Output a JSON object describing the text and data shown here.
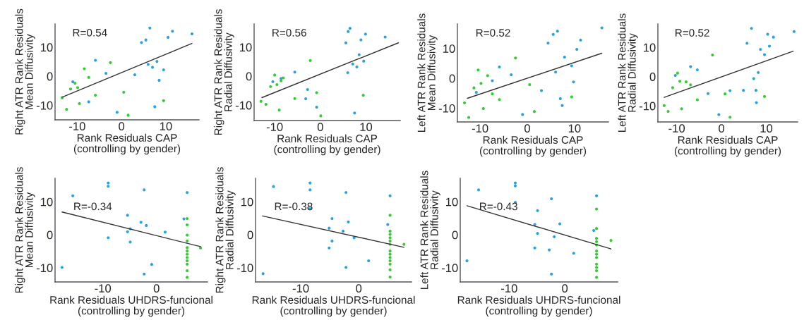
{
  "chart_data": [
    {
      "type": "scatter",
      "xlabel": "Rank Residuals CAP\n(controlling by gender)",
      "ylabel": "Right ATR Rank Residuals\nMean Diffusivity",
      "annotations": [
        "R=0.54"
      ],
      "xlim": [
        -15,
        17.5
      ],
      "ylim": [
        -15,
        18
      ],
      "xticks": [
        -10,
        0,
        10
      ],
      "yticks": [
        -10,
        0,
        10
      ],
      "grid": false,
      "legend": false,
      "series": [
        {
          "color": "#29a3de",
          "marker": "circle",
          "x": [
            6.4,
            11.5,
            10.5,
            15.9,
            4.5,
            5.5,
            -5.9,
            -3.5,
            3.0,
            6.0,
            8.0,
            7.0,
            9.5,
            8.5,
            -11.0,
            -7.4,
            -1.0,
            7.5
          ],
          "values": [
            16.6,
            15.5,
            13.4,
            14.6,
            11.6,
            12.5,
            5.5,
            1.0,
            0.5,
            4.1,
            5.1,
            3.1,
            2.2,
            -1.4,
            -1.9,
            -8.8,
            -12.4,
            -10.5
          ]
        },
        {
          "color": "#33cc33",
          "marker": "circle",
          "x": [
            -10.5,
            -9.9,
            -11.5,
            -8.4,
            -7.4,
            -2.5,
            -13.4,
            -12.4,
            -9.5,
            -5.9,
            0.5,
            1.5,
            9.5
          ],
          "values": [
            -2.4,
            -3.9,
            -4.4,
            2.6,
            -0.4,
            4.7,
            -7.4,
            -11.4,
            -9.4,
            -6.5,
            -5.5,
            -13.4,
            -8.4
          ]
        },
        {
          "type": "line",
          "color": "#333333",
          "marker": "none",
          "line_style": "solid",
          "x": [
            -13.4,
            15.9
          ],
          "values": [
            -7.2,
            11.3
          ]
        }
      ]
    },
    {
      "type": "scatter",
      "xlabel": "Rank Residuals CAP\n(controlling by gender)",
      "ylabel": "Right ATR Rank Residuals\nRadial Diffusivity",
      "annotations": [
        "R=0.56"
      ],
      "xlim": [
        -14.5,
        17.5
      ],
      "ylim": [
        -15.3,
        18
      ],
      "xticks": [
        -10,
        0,
        10
      ],
      "yticks": [
        -10,
        0,
        10
      ],
      "grid": false,
      "legend": false,
      "series": [
        {
          "color": "#29a3de",
          "marker": "circle",
          "x": [
            6.1,
            6.5,
            5.6,
            9.9,
            8.9,
            14.2,
            8.5,
            9.5,
            8.0,
            7.1,
            6.0,
            -5.6,
            -10.4,
            -8.6,
            -2.8,
            -3.2,
            -0.8,
            7.5
          ],
          "values": [
            15.4,
            16.5,
            11.5,
            14.5,
            12.5,
            13.5,
            7.4,
            5.2,
            3.2,
            4.2,
            1.2,
            1.4,
            -1.9,
            -0.8,
            -4.6,
            -7.8,
            -10.7,
            -12.7
          ]
        },
        {
          "color": "#33cc33",
          "marker": "circle",
          "x": [
            -10.0,
            -10.9,
            -9.5,
            -8.1,
            -8.6,
            -2.2,
            -13.0,
            -11.9,
            -9.0,
            -5.6,
            -0.8,
            0.1,
            9.4
          ],
          "values": [
            0.4,
            -3.6,
            -2.9,
            -0.6,
            -1.6,
            5.4,
            -8.7,
            -9.7,
            -11.7,
            -7.7,
            -5.7,
            -13.7,
            -6.6
          ]
        },
        {
          "type": "line",
          "color": "#333333",
          "marker": "none",
          "line_style": "solid",
          "x": [
            -12.8,
            17.1
          ],
          "values": [
            -7.4,
            11.5
          ]
        }
      ]
    },
    {
      "type": "scatter",
      "xlabel": "Rank Residuals CAP\n(controlling by gender)",
      "ylabel": "Left ATR Rank Residuals\nMean Diffusivity",
      "annotations": [
        "R=0.52"
      ],
      "xlim": [
        -14.8,
        17.2
      ],
      "ylim": [
        -14.6,
        18.2
      ],
      "xticks": [
        -10,
        0,
        10
      ],
      "yticks": [
        -10,
        0,
        10
      ],
      "grid": false,
      "legend": false,
      "series": [
        {
          "color": "#29a3de",
          "marker": "circle",
          "x": [
            15.8,
            5.5,
            6.4,
            4.4,
            11.3,
            10.5,
            7.9,
            9.4,
            6.0,
            9.8,
            -5.9,
            -3.4,
            -7.4,
            -10.8,
            3.0,
            7.0,
            7.4,
            -1.0
          ],
          "values": [
            16.9,
            14.7,
            15.8,
            11.8,
            12.8,
            9.7,
            7.1,
            4.2,
            2.1,
            -1.2,
            3.8,
            1.2,
            -0.8,
            -4.7,
            -4.1,
            -6.8,
            -9.1,
            -12.1
          ]
        },
        {
          "color": "#33cc33",
          "marker": "circle",
          "x": [
            -10.4,
            -8.4,
            -9.8,
            -11.3,
            -7.4,
            -5.9,
            -9.3,
            -13.3,
            -12.4,
            -2.5,
            0.5,
            1.5,
            9.4
          ],
          "values": [
            2.8,
            0.9,
            -1.7,
            -3.2,
            -5.2,
            -7.1,
            -10.1,
            -8.2,
            -13.1,
            6.8,
            -2.1,
            -11.1,
            -6.2
          ]
        },
        {
          "type": "line",
          "color": "#333333",
          "marker": "none",
          "line_style": "solid",
          "x": [
            -12.7,
            15.8
          ],
          "values": [
            -6.7,
            8.4
          ]
        }
      ]
    },
    {
      "type": "scatter",
      "xlabel": "Rank Residuals CAP\n(controlling by gender)",
      "ylabel": "Left ATR Rank Residuals\nRadial Diffusivity",
      "annotations": [
        "R=0.52"
      ],
      "xlim": [
        -14.2,
        17
      ],
      "ylim": [
        -15.5,
        18
      ],
      "xticks": [
        -10,
        0,
        10
      ],
      "yticks": [
        -10,
        0,
        10
      ],
      "grid": false,
      "legend": false,
      "series": [
        {
          "color": "#29a3de",
          "marker": "circle",
          "x": [
            16.2,
            6.7,
            10.3,
            11.6,
            5.7,
            8.7,
            10.7,
            9.6,
            8.2,
            7.2,
            7.7,
            4.9,
            1.9,
            -3.0,
            -6.9,
            -5.4,
            -10.3,
            7.8,
            -0.6
          ],
          "values": [
            15.4,
            16.5,
            14.5,
            13.5,
            11.4,
            9.3,
            10.4,
            7.5,
            1.4,
            -0.7,
            -4.7,
            -4.7,
            -4.8,
            -5.8,
            3.4,
            2.3,
            0.4,
            -8.9,
            -13.0
          ]
        },
        {
          "color": "#33cc33",
          "marker": "circle",
          "x": [
            -9.8,
            -10.9,
            -9.3,
            -7.9,
            -6.9,
            -2.0,
            -12.8,
            -11.9,
            -8.9,
            -5.4,
            0.8,
            1.9,
            9.6
          ],
          "values": [
            1.2,
            -3.8,
            -1.6,
            -1.8,
            -2.8,
            7.4,
            -9.9,
            -11.9,
            -11.0,
            -7.9,
            -5.9,
            -13.9,
            -6.8
          ]
        },
        {
          "type": "line",
          "color": "#333333",
          "marker": "none",
          "line_style": "solid",
          "x": [
            -12.8,
            16.0
          ],
          "values": [
            -7.1,
            8.7
          ]
        }
      ]
    },
    {
      "type": "scatter",
      "xlabel": "Rank Residuals UHDRS-funcional\n(controlling by gender)",
      "ylabel": "Right ATR Rank Residuals\nMean Diffusivity",
      "annotations": [
        "R=-0.34"
      ],
      "xlim": [
        -18.9,
        9.5
      ],
      "ylim": [
        -14.3,
        17.1
      ],
      "xticks": [
        -10,
        0
      ],
      "yticks": [
        -10,
        0,
        10
      ],
      "grid": false,
      "legend": false,
      "series": [
        {
          "color": "#29a3de",
          "marker": "circle",
          "x": [
            -9.0,
            -9.0,
            -15.6,
            -2.3,
            5.7,
            -5.4,
            -2.9,
            -1.9,
            5.1,
            -5.4,
            -4.9,
            1.6,
            -9.0,
            -4.9,
            -0.9,
            -2.3,
            -17.6
          ],
          "values": [
            15.7,
            14.7,
            11.8,
            13.6,
            12.8,
            5.9,
            3.8,
            2.8,
            4.8,
            0.9,
            1.8,
            0.8,
            -0.9,
            -2.2,
            -9.0,
            -11.9,
            -9.9
          ]
        },
        {
          "color": "#33cc33",
          "marker": "circle",
          "x": [
            5.7,
            5.7,
            5.7,
            5.7,
            5.7,
            5.7,
            5.7,
            5.7,
            5.7,
            5.7,
            5.7,
            5.7,
            8.2
          ],
          "values": [
            4.9,
            3.0,
            -0.1,
            -1.9,
            -3.9,
            -4.9,
            -5.9,
            -6.9,
            -7.9,
            -8.9,
            -10.9,
            -12.9,
            -4.0
          ]
        },
        {
          "type": "line",
          "color": "#333333",
          "marker": "none",
          "line_style": "solid",
          "x": [
            -17.6,
            8.2
          ],
          "values": [
            6.9,
            -3.6
          ]
        }
      ]
    },
    {
      "type": "scatter",
      "xlabel": "Rank Residuals UHDRS-funcional\n(controlling by gender)",
      "ylabel": "Right ATR Rank Residuals\nRadial Diffusivity",
      "annotations": [
        "R=-0.38"
      ],
      "xlim": [
        -17.8,
        9.1
      ],
      "ylim": [
        -14.3,
        17.1
      ],
      "xticks": [
        -10,
        0
      ],
      "yticks": [
        -10,
        0,
        10
      ],
      "grid": false,
      "legend": false,
      "series": [
        {
          "color": "#29a3de",
          "marker": "circle",
          "x": [
            -14.7,
            -16.5,
            -8.4,
            -8.4,
            -8.4,
            -2.2,
            5.4,
            -4.6,
            -1.8,
            -5.1,
            -2.7,
            -0.8,
            -4.6,
            -5.1,
            1.7,
            -2.2,
            5.0
          ],
          "values": [
            14.6,
            -11.8,
            15.7,
            13.6,
            7.9,
            12.8,
            11.8,
            4.9,
            3.9,
            2.0,
            1.1,
            -0.9,
            -1.9,
            -4.0,
            -7.9,
            -9.9,
            3.1
          ]
        },
        {
          "color": "#33cc33",
          "marker": "circle",
          "x": [
            5.4,
            5.4,
            5.4,
            5.4,
            5.4,
            5.4,
            5.4,
            5.4,
            5.4,
            5.4,
            5.4,
            5.4,
            5.4,
            7.8
          ],
          "values": [
            5.9,
            1.1,
            0.1,
            -0.9,
            -1.9,
            -2.9,
            -4.9,
            -5.9,
            -6.9,
            -7.9,
            -8.9,
            -10.6,
            -12.8,
            -2.9
          ]
        },
        {
          "type": "line",
          "color": "#333333",
          "marker": "none",
          "line_style": "solid",
          "x": [
            -16.6,
            7.8
          ],
          "values": [
            5.7,
            -3.8
          ]
        }
      ]
    },
    {
      "type": "scatter",
      "xlabel": "Rank Residuals UHDRS-funcional\n(controlling by gender)",
      "ylabel": "Left ATR Rank Residuals\nRadial Diffusivity",
      "annotations": [
        "R=-0.43"
      ],
      "xlim": [
        -18.8,
        9.5
      ],
      "ylim": [
        -14.3,
        17.1
      ],
      "xticks": [
        -10,
        0
      ],
      "yticks": [
        -10,
        0,
        10
      ],
      "grid": false,
      "legend": false,
      "series": [
        {
          "color": "#29a3de",
          "marker": "circle",
          "x": [
            -15.5,
            -17.6,
            -8.9,
            -8.9,
            -8.9,
            -4.9,
            -5.4,
            -4.9,
            -5.4,
            -2.4,
            -0.9,
            -1.9,
            -2.8,
            1.6,
            -2.4,
            5.2,
            5.7
          ],
          "values": [
            13.6,
            -7.9,
            15.7,
            14.8,
            9.8,
            7.3,
            3.1,
            0.4,
            -4.0,
            10.9,
            3.3,
            -0.6,
            -4.6,
            -5.6,
            -11.9,
            1.3,
            11.8
          ]
        },
        {
          "color": "#33cc33",
          "marker": "circle",
          "x": [
            5.7,
            5.7,
            5.7,
            5.7,
            5.7,
            5.7,
            5.7,
            5.7,
            5.7,
            5.7,
            5.7,
            5.7,
            8.3
          ],
          "values": [
            7.8,
            1.9,
            -1.1,
            -2.1,
            -3.1,
            -4.9,
            -5.9,
            -6.9,
            -8.9,
            -9.9,
            -10.9,
            -12.9,
            -1.7
          ]
        },
        {
          "type": "line",
          "color": "#333333",
          "marker": "none",
          "line_style": "solid",
          "x": [
            -17.6,
            8.3
          ],
          "values": [
            8.8,
            -4.3
          ]
        }
      ]
    }
  ]
}
